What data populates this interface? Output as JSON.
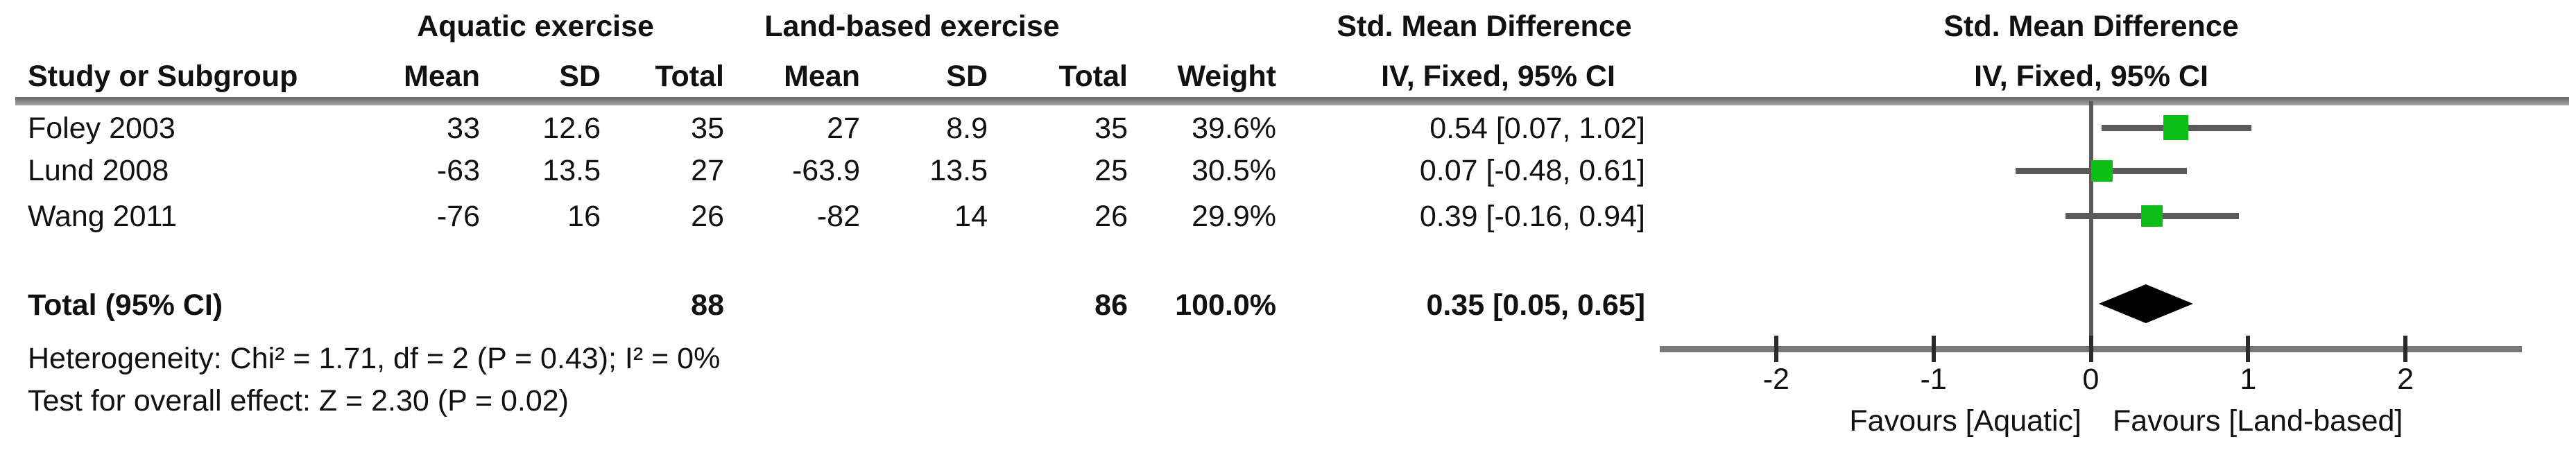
{
  "table": {
    "group_headers": {
      "aquatic": "Aquatic exercise",
      "land": "Land-based exercise",
      "smd": "Std. Mean Difference"
    },
    "col_headers": {
      "study": "Study or Subgroup",
      "mean": "Mean",
      "sd": "SD",
      "total": "Total",
      "weight": "Weight",
      "effect": "IV, Fixed, 95% CI"
    },
    "studies": [
      {
        "name": "Foley 2003",
        "a_mean": "33",
        "a_sd": "12.6",
        "a_total": "35",
        "l_mean": "27",
        "l_sd": "8.9",
        "l_total": "35",
        "weight": "39.6%",
        "ci": "0.54 [0.07, 1.02]"
      },
      {
        "name": "Lund 2008",
        "a_mean": "-63",
        "a_sd": "13.5",
        "a_total": "27",
        "l_mean": "-63.9",
        "l_sd": "13.5",
        "l_total": "25",
        "weight": "30.5%",
        "ci": "0.07 [-0.48, 0.61]"
      },
      {
        "name": "Wang 2011",
        "a_mean": "-76",
        "a_sd": "16",
        "a_total": "26",
        "l_mean": "-82",
        "l_sd": "14",
        "l_total": "26",
        "weight": "29.9%",
        "ci": "0.39 [-0.16, 0.94]"
      }
    ],
    "total_row": {
      "label": "Total (95% CI)",
      "a_total": "88",
      "l_total": "86",
      "weight": "100.0%",
      "ci": "0.35 [0.05, 0.65]"
    },
    "heterogeneity": "Heterogeneity: Chi² = 1.71, df = 2 (P = 0.43); I² = 0%",
    "overall_effect": "Test for overall effect: Z = 2.30 (P = 0.02)"
  },
  "chart_data": {
    "type": "scatter",
    "subtype": "forest-plot",
    "title": "Std. Mean Difference",
    "effect_measure": "IV, Fixed, 95% CI",
    "x_ticks": [
      -2,
      -1,
      0,
      1,
      2
    ],
    "x_range": [
      -2.74,
      2.74
    ],
    "zero_line": 0,
    "studies": [
      {
        "label": "Foley 2003",
        "estimate": 0.54,
        "ci_low": 0.07,
        "ci_high": 1.02,
        "weight_pct": 39.6
      },
      {
        "label": "Lund 2008",
        "estimate": 0.07,
        "ci_low": -0.48,
        "ci_high": 0.61,
        "weight_pct": 30.5
      },
      {
        "label": "Wang 2011",
        "estimate": 0.39,
        "ci_low": -0.16,
        "ci_high": 0.94,
        "weight_pct": 29.9
      }
    ],
    "total": {
      "estimate": 0.35,
      "ci_low": 0.05,
      "ci_high": 0.65,
      "weight_pct": 100.0
    },
    "favours_left": "Favours [Aquatic]",
    "favours_right": "Favours [Land-based]",
    "marker_color": "#0dbe15",
    "diamond_color": "#000000",
    "line_color": "#5a5a5a",
    "legend_position": "none",
    "grid": false
  }
}
